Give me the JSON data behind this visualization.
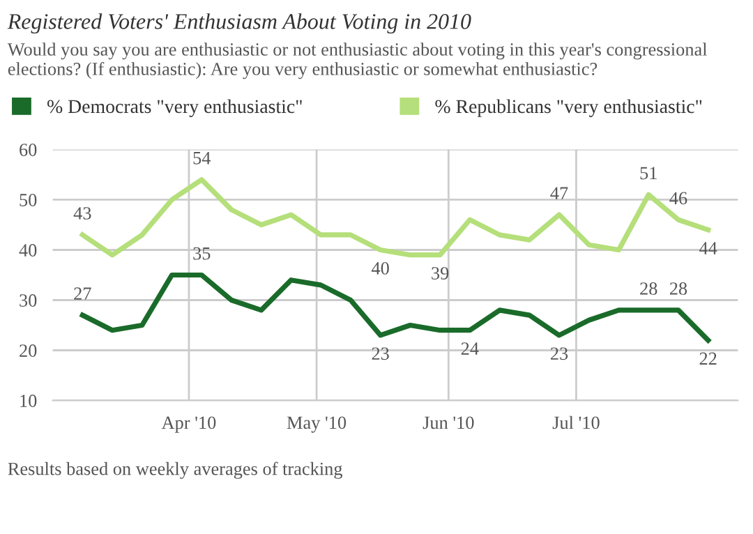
{
  "chart_data": {
    "type": "line",
    "title": "Registered Voters' Enthusiasm About Voting in 2010",
    "subtitle": "Would you say you are enthusiastic or not enthusiastic about voting in this year's congressional elections? (If enthusiastic): Are you very enthusiastic or somewhat enthusiastic?",
    "x": [
      "2010-03-07",
      "2010-03-14",
      "2010-03-21",
      "2010-03-28",
      "2010-04-04",
      "2010-04-11",
      "2010-04-18",
      "2010-04-25",
      "2010-05-02",
      "2010-05-09",
      "2010-05-16",
      "2010-05-23",
      "2010-05-30",
      "2010-06-06",
      "2010-06-13",
      "2010-06-20",
      "2010-06-27",
      "2010-07-04",
      "2010-07-11",
      "2010-07-18",
      "2010-07-25",
      "2010-08-01"
    ],
    "series": [
      {
        "name": "% Democrats \"very enthusiastic\"",
        "color": "#1a6b2a",
        "values": [
          27,
          24,
          25,
          35,
          35,
          30,
          28,
          34,
          33,
          30,
          23,
          25,
          24,
          24,
          28,
          27,
          23,
          26,
          28,
          28,
          28,
          22
        ],
        "value_labels": [
          "27",
          null,
          null,
          null,
          "35",
          null,
          null,
          null,
          null,
          null,
          "23",
          null,
          null,
          "24",
          null,
          null,
          "23",
          null,
          null,
          "28",
          "28",
          "22"
        ]
      },
      {
        "name": "% Republicans \"very enthusiastic\"",
        "color": "#b5df7a",
        "values": [
          43,
          39,
          43,
          50,
          54,
          48,
          45,
          47,
          43,
          43,
          40,
          39,
          39,
          46,
          43,
          42,
          47,
          41,
          40,
          51,
          46,
          44
        ],
        "value_labels": [
          "43",
          null,
          null,
          null,
          "54",
          null,
          null,
          null,
          null,
          null,
          "40",
          null,
          "39",
          null,
          null,
          null,
          "47",
          null,
          null,
          "51",
          "46",
          "44"
        ]
      }
    ],
    "xlim": [
      "2010-02-28",
      "2010-08-08"
    ],
    "xticks": [
      {
        "value": "2010-04-01",
        "label": "Apr '10"
      },
      {
        "value": "2010-05-01",
        "label": "May '10"
      },
      {
        "value": "2010-06-01",
        "label": "Jun '10"
      },
      {
        "value": "2010-07-01",
        "label": "Jul '10"
      }
    ],
    "ylim": [
      10,
      60
    ],
    "yticks": [
      10,
      20,
      30,
      40,
      50,
      60
    ],
    "grid": true,
    "legend": "top",
    "marker": "none",
    "line_style": "solid",
    "annotations": [
      "Results based on weekly averages of tracking"
    ]
  }
}
